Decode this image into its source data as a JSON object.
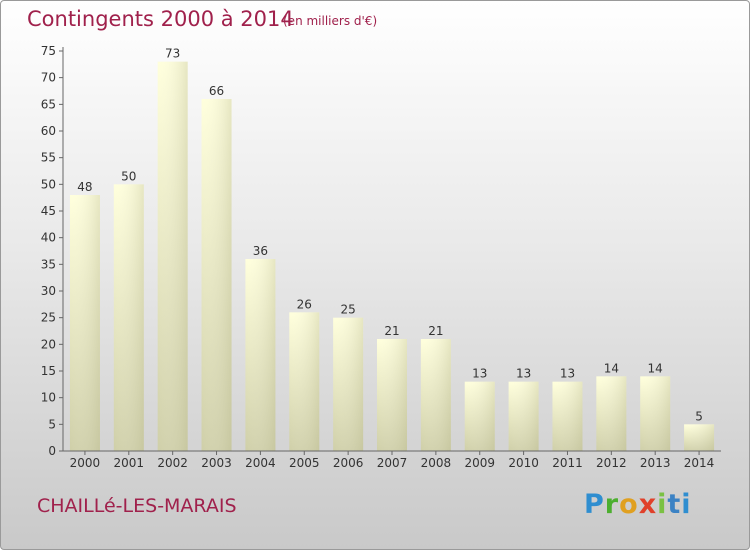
{
  "header": {
    "title": "Contingents 2000 à 2014",
    "unit": "(en milliers d'€)"
  },
  "footer": {
    "commune": "CHAILLé-LES-MARAIS",
    "logo_text": "Proxiti"
  },
  "colors": {
    "title": "#a0214c",
    "bar_top": "#ffffdc",
    "bar_bottom": "#cfcfa8",
    "axis": "#555555"
  },
  "chart_data": {
    "type": "bar",
    "categories": [
      "2000",
      "2001",
      "2002",
      "2003",
      "2004",
      "2005",
      "2006",
      "2007",
      "2008",
      "2009",
      "2010",
      "2011",
      "2012",
      "2013",
      "2014"
    ],
    "values": [
      48,
      50,
      73,
      66,
      36,
      26,
      25,
      21,
      21,
      13,
      13,
      13,
      14,
      14,
      5
    ],
    "title": "Contingents 2000 à 2014",
    "ylim": [
      0,
      75
    ],
    "yticks": [
      0,
      5,
      10,
      15,
      20,
      25,
      30,
      35,
      40,
      45,
      50,
      55,
      60,
      65,
      70,
      75
    ],
    "grid": false,
    "data_labels": true
  }
}
